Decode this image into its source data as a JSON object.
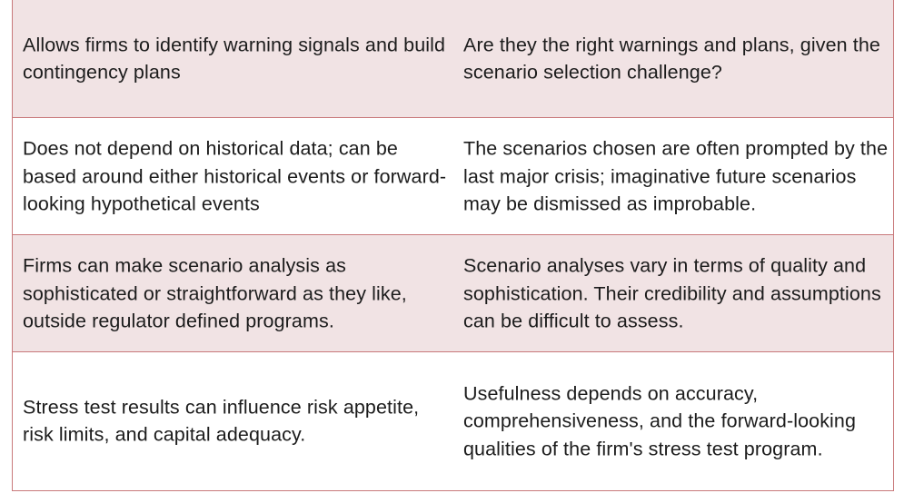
{
  "rows": [
    {
      "left": "Allows firms to identify warning signals and build contingency plans",
      "right": "Are they the right warnings and plans, given the scenario selection challenge?"
    },
    {
      "left": "Does not depend on historical data; can be based around either historical events or forward-looking hypothetical events",
      "right": "The scenarios chosen are often prompted by the last major crisis; imaginative future scenarios may be dismissed as improbable."
    },
    {
      "left": "Firms can make scenario analysis as sophisticated or straightforward as they like, outside regulator defined programs.",
      "right": "Scenario analyses vary in terms of quality and sophistication. Their credibility and assumptions can be difficult to assess."
    },
    {
      "left": "Stress test results can influence risk appetite, risk limits, and capital adequacy.",
      "right": "Usefulness depends on accuracy, comprehensiveness, and the forward-looking qualities of the firm's stress test program."
    }
  ]
}
